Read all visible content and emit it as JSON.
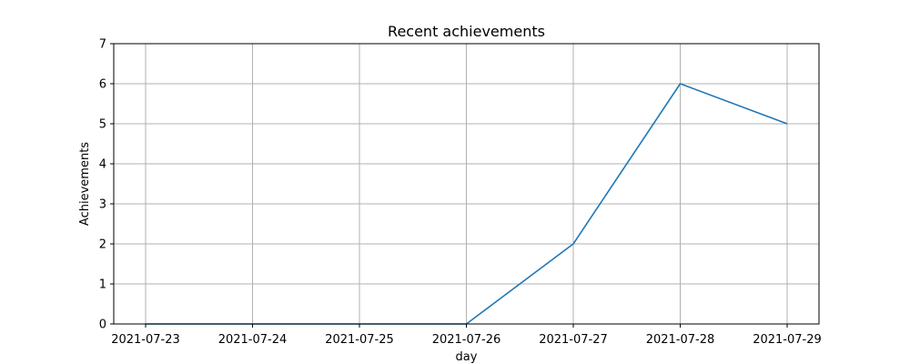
{
  "chart_data": {
    "type": "line",
    "title": "Recent achievements",
    "xlabel": "day",
    "ylabel": "Achievements",
    "x": [
      "2021-07-23",
      "2021-07-24",
      "2021-07-25",
      "2021-07-26",
      "2021-07-27",
      "2021-07-28",
      "2021-07-29"
    ],
    "series": [
      {
        "values": [
          0,
          0,
          0,
          0,
          2,
          6,
          5
        ],
        "color": "#1f77b4"
      }
    ],
    "ylim": [
      0,
      7
    ],
    "yticks": [
      0,
      1,
      2,
      3,
      4,
      5,
      6,
      7
    ],
    "grid": true,
    "legend": "none"
  }
}
